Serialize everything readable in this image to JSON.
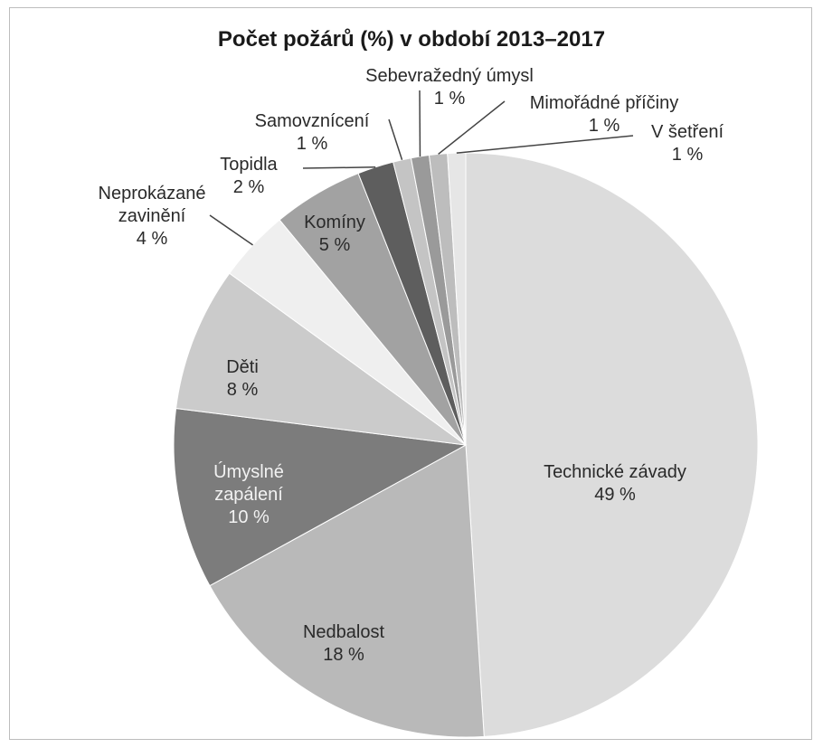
{
  "chart_data": {
    "type": "pie",
    "title": "Počet požárů (%) v období 2013–2017",
    "slices": [
      {
        "label": "Technické závady",
        "value": 49,
        "value_label": "49 %",
        "color": "#dcdcdc"
      },
      {
        "label": "Nedbalost",
        "value": 18,
        "value_label": "18 %",
        "color": "#b9b9b9"
      },
      {
        "label": "Úmyslné zapálení",
        "value": 10,
        "value_label": "10 %",
        "color": "#7c7c7c"
      },
      {
        "label": "Děti",
        "value": 8,
        "value_label": "8 %",
        "color": "#cbcbcb"
      },
      {
        "label": "Neprokázané zavinění",
        "value": 4,
        "value_label": "4 %",
        "color": "#efefef"
      },
      {
        "label": "Komíny",
        "value": 5,
        "value_label": "5 %",
        "color": "#a2a2a2"
      },
      {
        "label": "Topidla",
        "value": 2,
        "value_label": "2 %",
        "color": "#5e5e5e"
      },
      {
        "label": "Samovznícení",
        "value": 1,
        "value_label": "1 %",
        "color": "#c4c4c4"
      },
      {
        "label": "Sebevražedný úmysl",
        "value": 1,
        "value_label": "1 %",
        "color": "#9a9a9a"
      },
      {
        "label": "Mimořádné příčiny",
        "value": 1,
        "value_label": "1 %",
        "color": "#bdbdbd"
      },
      {
        "label": "V šetření",
        "value": 1,
        "value_label": "1 %",
        "color": "#e6e6e6"
      }
    ]
  }
}
